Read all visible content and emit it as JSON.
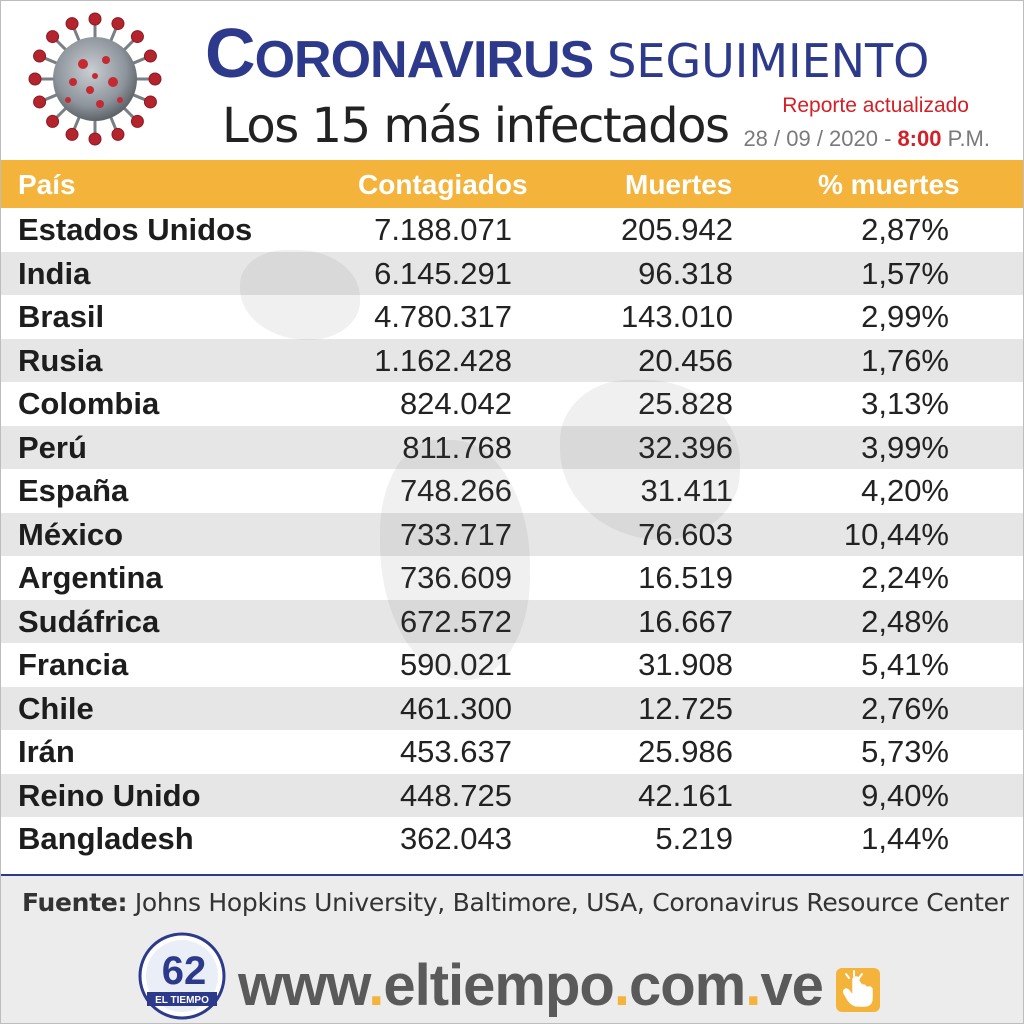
{
  "header": {
    "title_first": "C",
    "title_rest": "ORONAVIRUS",
    "title_second": "SEGUIMIENTO",
    "subtitle": "Los 15 más infectados",
    "report_label": "Reporte actualizado",
    "date": "28 / 09 / 2020 -",
    "time": "8:00",
    "ampm": "P.M."
  },
  "table": {
    "headers": {
      "country": "País",
      "cases": "Contagiados",
      "deaths": "Muertes",
      "pct": "% muertes"
    },
    "rows": [
      {
        "country": "Estados Unidos",
        "cases": "7.188.071",
        "deaths": "205.942",
        "pct": "2,87%"
      },
      {
        "country": "India",
        "cases": "6.145.291",
        "deaths": "96.318",
        "pct": "1,57%"
      },
      {
        "country": "Brasil",
        "cases": "4.780.317",
        "deaths": "143.010",
        "pct": "2,99%"
      },
      {
        "country": "Rusia",
        "cases": "1.162.428",
        "deaths": "20.456",
        "pct": "1,76%"
      },
      {
        "country": "Colombia",
        "cases": "824.042",
        "deaths": "25.828",
        "pct": "3,13%"
      },
      {
        "country": "Perú",
        "cases": "811.768",
        "deaths": "32.396",
        "pct": "3,99%"
      },
      {
        "country": "España",
        "cases": "748.266",
        "deaths": "31.411",
        "pct": "4,20%"
      },
      {
        "country": "México",
        "cases": "733.717",
        "deaths": "76.603",
        "pct": "10,44%"
      },
      {
        "country": "Argentina",
        "cases": "736.609",
        "deaths": "16.519",
        "pct": "2,24%"
      },
      {
        "country": "Sudáfrica",
        "cases": "672.572",
        "deaths": "16.667",
        "pct": "2,48%"
      },
      {
        "country": "Francia",
        "cases": "590.021",
        "deaths": "31.908",
        "pct": "5,41%"
      },
      {
        "country": "Chile",
        "cases": "461.300",
        "deaths": "12.725",
        "pct": "2,76%"
      },
      {
        "country": "Irán",
        "cases": "453.637",
        "deaths": "25.986",
        "pct": "5,73%"
      },
      {
        "country": "Reino Unido",
        "cases": "448.725",
        "deaths": "42.161",
        "pct": "9,40%"
      },
      {
        "country": "Bangladesh",
        "cases": "362.043",
        "deaths": "5.219",
        "pct": "1,44%"
      }
    ]
  },
  "footer": {
    "source_label": "Fuente:",
    "source_text": " Johns Hopkins University, Baltimore, USA, Coronavirus Resource Center",
    "url_www": "www",
    "url_name": "eltiempo",
    "url_com": "com",
    "url_ve": "ve",
    "url_dot": ".",
    "logo_number": "62",
    "logo_text": "EL TIEMPO"
  },
  "colors": {
    "title_blue": "#2d3a8c",
    "header_orange": "#f4b33b",
    "accent_red": "#d32027",
    "row_alt_gray": "#e6e6e6"
  },
  "icons": [
    "coronavirus-illustration",
    "newspaper-logo",
    "hand-click-icon"
  ]
}
